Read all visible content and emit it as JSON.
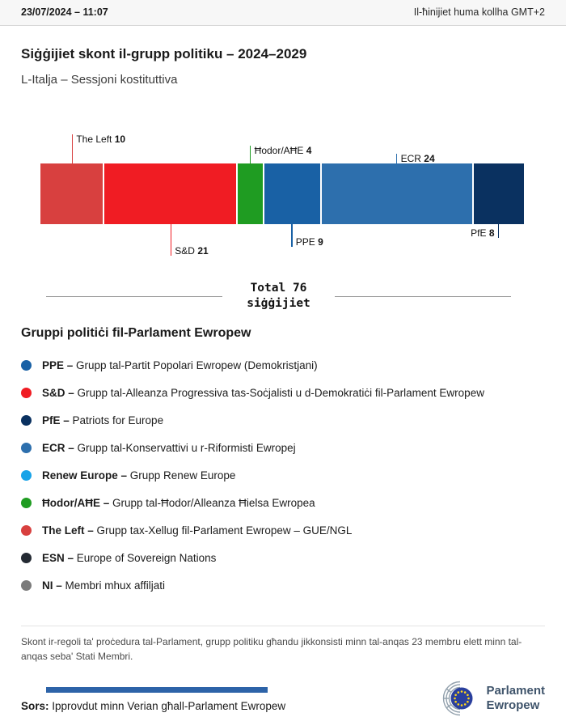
{
  "header": {
    "datetime": "23/07/2024 – 11:07",
    "timezone_note": "Il-ħinijiet huma kollha GMT+2"
  },
  "page": {
    "title": "Siġġijiet skont il-grupp politiku – 2024–2029",
    "subtitle": "L-Italja – Sessjoni kostituttiva"
  },
  "chart_data": {
    "type": "bar",
    "variant": "horizontal-stacked-seats",
    "title": "Siġġijiet skont il-grupp politiku – 2024–2029",
    "region": "L-Italja – Sessjoni kostituttiva",
    "total": 76,
    "total_label_line1": "Total 76",
    "total_label_line2": "siġġijiet",
    "segments": [
      {
        "id": "the-left",
        "name": "The Left",
        "value": 10,
        "color": "#d8403f",
        "side": "top",
        "tier": 1,
        "align": "left"
      },
      {
        "id": "sd",
        "name": "S&D",
        "value": 21,
        "color": "#f01c23",
        "side": "bottom",
        "tier": 3,
        "align": "left"
      },
      {
        "id": "hodor-ahe",
        "name": "Ħodor/AĦE",
        "value": 4,
        "color": "#1f9c22",
        "side": "top",
        "tier": 2,
        "align": "left"
      },
      {
        "id": "ppe",
        "name": "PPE",
        "value": 9,
        "color": "#1961a5",
        "side": "bottom",
        "tier": 2,
        "align": "left"
      },
      {
        "id": "ecr",
        "name": "ECR",
        "value": 24,
        "color": "#2d6fad",
        "side": "top",
        "tier": 3,
        "align": "left"
      },
      {
        "id": "pfe",
        "name": "PfE",
        "value": 8,
        "color": "#0a3160",
        "side": "bottom",
        "tier": 1,
        "align": "right"
      }
    ]
  },
  "legend": {
    "heading": "Gruppi politiċi fil-Parlament Ewropew",
    "items": [
      {
        "id": "ppe",
        "abbr": "PPE –",
        "desc": "Grupp tal-Partit Popolari Ewropew (Demokristjani)",
        "color": "#1961a5"
      },
      {
        "id": "sd",
        "abbr": "S&D –",
        "desc": "Grupp tal-Alleanza Progressiva tas-Soċjalisti u d-Demokratiċi fil-Parlament Ewropew",
        "color": "#f01c23"
      },
      {
        "id": "pfe",
        "abbr": "PfE –",
        "desc": "Patriots for Europe",
        "color": "#0a3160"
      },
      {
        "id": "ecr",
        "abbr": "ECR –",
        "desc": "Grupp tal-Konservattivi u r-Riformisti Ewropej",
        "color": "#2d6fad"
      },
      {
        "id": "renew",
        "abbr": "Renew Europe –",
        "desc": "Grupp Renew Europe",
        "color": "#17a3e8"
      },
      {
        "id": "hodor-ahe",
        "abbr": "Ħodor/AĦE –",
        "desc": "Grupp tal-Ħodor/Alleanza Ħielsa Ewropea",
        "color": "#1f9c22"
      },
      {
        "id": "the-left",
        "abbr": "The Left –",
        "desc": "Grupp tax-Xellug fil-Parlament Ewropew – GUE/NGL",
        "color": "#d8403f"
      },
      {
        "id": "esn",
        "abbr": "ESN –",
        "desc": "Europe of Sovereign Nations",
        "color": "#242a33"
      },
      {
        "id": "ni",
        "abbr": "NI –",
        "desc": "Membri mhux affiljati",
        "color": "#7b7b7b"
      }
    ]
  },
  "footnote": "Skont ir-regoli ta' proċedura tal-Parlament, grupp politiku għandu jikkonsisti minn tal-anqas 23 membru elett minn tal-anqas seba' Stati Membri.",
  "source": {
    "label": "Sors:",
    "text": " Ipprovdut minn Verian għall-Parlament Ewropew"
  },
  "logo": {
    "line1": "Parlament",
    "line2": "Ewropew"
  }
}
